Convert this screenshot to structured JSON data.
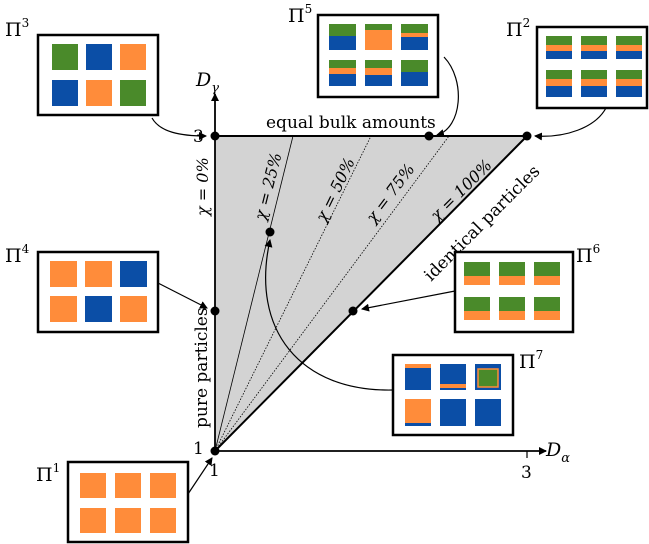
{
  "axes": {
    "x_label_main": "D",
    "x_label_sub": "α",
    "y_label_main": "D",
    "y_label_sub": "γ",
    "x_tick_1": "1",
    "x_tick_3": "3",
    "y_tick_1": "1",
    "y_tick_3": "3"
  },
  "region_labels": {
    "top": "equal bulk amounts",
    "diagonal": "identical particles",
    "left": "pure particles"
  },
  "chi_lines": {
    "chi0": "χ = 0%",
    "chi25": "χ = 25%",
    "chi50": "χ = 50%",
    "chi75": "χ = 75%",
    "chi100": "χ = 100%"
  },
  "panels": {
    "p1": {
      "label": "Π",
      "sup": "1"
    },
    "p2": {
      "label": "Π",
      "sup": "2"
    },
    "p3": {
      "label": "Π",
      "sup": "3"
    },
    "p4": {
      "label": "Π",
      "sup": "4"
    },
    "p5": {
      "label": "Π",
      "sup": "5"
    },
    "p6": {
      "label": "Π",
      "sup": "6"
    },
    "p7": {
      "label": "Π",
      "sup": "7"
    }
  },
  "colors": {
    "orange": "#ff8c3a",
    "blue": "#0b4ea6",
    "green": "#4a8a2a",
    "region_fill": "#d3d3d3"
  }
}
